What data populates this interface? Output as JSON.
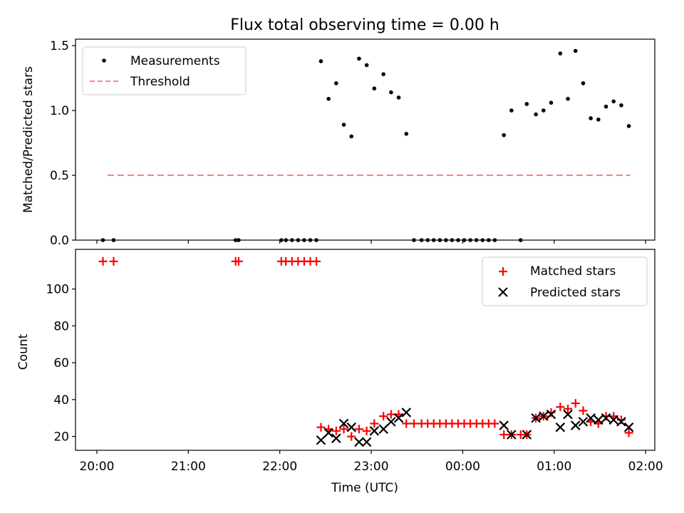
{
  "figure_title": "Flux total observing time = 0.00 h",
  "chart_data": [
    {
      "type": "scatter",
      "title": "Flux total observing time = 0.00 h",
      "xlabel": "",
      "ylabel": "Matched/Predicted stars",
      "xlim": [
        "19:46",
        "02:06"
      ],
      "ylim": [
        0,
        1.55
      ],
      "yticks": [
        0.0,
        0.5,
        1.0,
        1.5
      ],
      "ytick_labels": [
        "0.0",
        "0.5",
        "1.0",
        "1.5"
      ],
      "grid": false,
      "legend": "top-left",
      "series": [
        {
          "name": "Measurements",
          "marker": "dot",
          "color": "#000000",
          "points": [
            [
              "20:04",
              0
            ],
            [
              "20:11",
              0
            ],
            [
              "21:31",
              0
            ],
            [
              "21:33",
              0
            ],
            [
              "22:01",
              0
            ],
            [
              "22:04",
              0
            ],
            [
              "22:08",
              0
            ],
            [
              "22:12",
              0
            ],
            [
              "22:16",
              0
            ],
            [
              "22:20",
              0
            ],
            [
              "22:24",
              0
            ],
            [
              "22:27",
              1.38
            ],
            [
              "22:32",
              1.09
            ],
            [
              "22:37",
              1.21
            ],
            [
              "22:42",
              0.89
            ],
            [
              "22:47",
              0.8
            ],
            [
              "22:52",
              1.4
            ],
            [
              "22:57",
              1.35
            ],
            [
              "23:02",
              1.17
            ],
            [
              "23:08",
              1.28
            ],
            [
              "23:13",
              1.14
            ],
            [
              "23:18",
              1.1
            ],
            [
              "23:23",
              0.82
            ],
            [
              "23:28",
              0
            ],
            [
              "23:33",
              0
            ],
            [
              "23:37",
              0
            ],
            [
              "23:41",
              0
            ],
            [
              "23:45",
              0
            ],
            [
              "23:49",
              0
            ],
            [
              "23:53",
              0
            ],
            [
              "23:57",
              0
            ],
            [
              "00:01",
              0
            ],
            [
              "00:05",
              0
            ],
            [
              "00:09",
              0
            ],
            [
              "00:13",
              0
            ],
            [
              "00:17",
              0
            ],
            [
              "00:21",
              0
            ],
            [
              "00:27",
              0.81
            ],
            [
              "00:32",
              1.0
            ],
            [
              "00:38",
              0
            ],
            [
              "00:42",
              1.05
            ],
            [
              "00:48",
              0.97
            ],
            [
              "00:53",
              1.0
            ],
            [
              "00:58",
              1.06
            ],
            [
              "01:04",
              1.44
            ],
            [
              "01:09",
              1.09
            ],
            [
              "01:14",
              1.46
            ],
            [
              "01:19",
              1.21
            ],
            [
              "01:24",
              0.94
            ],
            [
              "01:29",
              0.93
            ],
            [
              "01:34",
              1.03
            ],
            [
              "01:39",
              1.07
            ],
            [
              "01:44",
              1.04
            ],
            [
              "01:49",
              0.88
            ]
          ]
        },
        {
          "name": "Threshold",
          "style": "dashed",
          "color": "#ff7f7f",
          "points": [
            [
              "20:07",
              0.5
            ],
            [
              "01:50",
              0.5
            ]
          ]
        }
      ]
    },
    {
      "type": "scatter",
      "xlabel": "Time (UTC)",
      "ylabel": "Count",
      "xlim": [
        "19:46",
        "02:06"
      ],
      "xticks": [
        "20:00",
        "21:00",
        "22:00",
        "23:00",
        "00:00",
        "01:00",
        "02:00"
      ],
      "ylim": [
        12.5,
        121.5
      ],
      "yticks": [
        20,
        40,
        60,
        80,
        100
      ],
      "grid": false,
      "legend": "top-right",
      "series": [
        {
          "name": "Matched stars",
          "marker": "plus",
          "color": "#ff0000",
          "points": [
            [
              "20:04",
              115
            ],
            [
              "20:11",
              115
            ],
            [
              "21:31",
              115
            ],
            [
              "21:33",
              115
            ],
            [
              "22:01",
              115
            ],
            [
              "22:04",
              115
            ],
            [
              "22:08",
              115
            ],
            [
              "22:12",
              115
            ],
            [
              "22:16",
              115
            ],
            [
              "22:20",
              115
            ],
            [
              "22:24",
              115
            ],
            [
              "22:27",
              25
            ],
            [
              "22:32",
              24
            ],
            [
              "22:37",
              23
            ],
            [
              "22:42",
              24
            ],
            [
              "22:47",
              20
            ],
            [
              "22:52",
              24
            ],
            [
              "22:57",
              23
            ],
            [
              "23:02",
              27
            ],
            [
              "23:08",
              31
            ],
            [
              "23:13",
              32
            ],
            [
              "23:18",
              32
            ],
            [
              "23:23",
              27
            ],
            [
              "23:28",
              27
            ],
            [
              "23:33",
              27
            ],
            [
              "23:37",
              27
            ],
            [
              "23:41",
              27
            ],
            [
              "23:45",
              27
            ],
            [
              "23:49",
              27
            ],
            [
              "23:53",
              27
            ],
            [
              "23:57",
              27
            ],
            [
              "00:01",
              27
            ],
            [
              "00:05",
              27
            ],
            [
              "00:09",
              27
            ],
            [
              "00:13",
              27
            ],
            [
              "00:17",
              27
            ],
            [
              "00:21",
              27
            ],
            [
              "00:27",
              21
            ],
            [
              "00:32",
              21
            ],
            [
              "00:38",
              21
            ],
            [
              "00:42",
              21
            ],
            [
              "00:48",
              30
            ],
            [
              "00:53",
              31
            ],
            [
              "00:58",
              33
            ],
            [
              "01:04",
              36
            ],
            [
              "01:09",
              35
            ],
            [
              "01:14",
              38
            ],
            [
              "01:19",
              34
            ],
            [
              "01:24",
              28
            ],
            [
              "01:29",
              27
            ],
            [
              "01:34",
              31
            ],
            [
              "01:39",
              31
            ],
            [
              "01:44",
              29
            ],
            [
              "01:49",
              22
            ]
          ]
        },
        {
          "name": "Predicted stars",
          "marker": "x",
          "color": "#000000",
          "points": [
            [
              "22:27",
              18
            ],
            [
              "22:32",
              22
            ],
            [
              "22:37",
              19
            ],
            [
              "22:42",
              27
            ],
            [
              "22:47",
              25
            ],
            [
              "22:52",
              17
            ],
            [
              "22:57",
              17
            ],
            [
              "23:02",
              23
            ],
            [
              "23:08",
              24
            ],
            [
              "23:13",
              28
            ],
            [
              "23:18",
              30
            ],
            [
              "23:23",
              33
            ],
            [
              "00:27",
              26
            ],
            [
              "00:32",
              21
            ],
            [
              "00:42",
              21
            ],
            [
              "00:48",
              30
            ],
            [
              "00:53",
              31
            ],
            [
              "00:58",
              32
            ],
            [
              "01:04",
              25
            ],
            [
              "01:09",
              32
            ],
            [
              "01:14",
              26
            ],
            [
              "01:19",
              28
            ],
            [
              "01:24",
              30
            ],
            [
              "01:29",
              29
            ],
            [
              "01:34",
              30
            ],
            [
              "01:39",
              29
            ],
            [
              "01:44",
              28
            ],
            [
              "01:49",
              25
            ]
          ]
        }
      ]
    }
  ]
}
